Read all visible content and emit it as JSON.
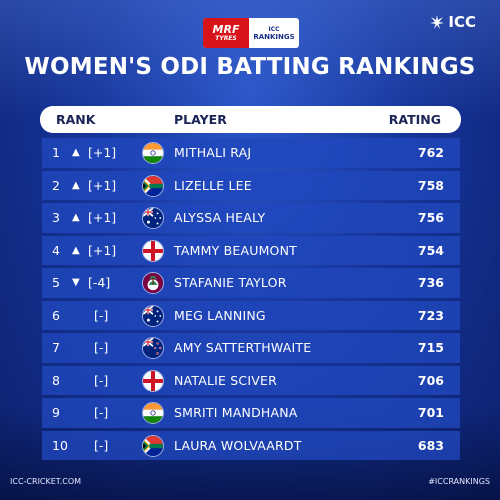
{
  "sponsor": {
    "brand": "MRF",
    "brand_sub": "TYRES",
    "tag_top": "ICC",
    "tag_bottom": "RANKINGS"
  },
  "logo": {
    "text": "ICC"
  },
  "title": "WOMEN'S ODI BATTING RANKINGS",
  "header": {
    "rank": "RANK",
    "player": "PLAYER",
    "rating": "RATING"
  },
  "rows": [
    {
      "pos": "1",
      "arrow": "▲",
      "move": "[+1]",
      "flag": "india",
      "name": "MITHALI RAJ",
      "rating": "762"
    },
    {
      "pos": "2",
      "arrow": "▲",
      "move": "[+1]",
      "flag": "south-africa",
      "name": "LIZELLE LEE",
      "rating": "758"
    },
    {
      "pos": "3",
      "arrow": "▲",
      "move": "[+1]",
      "flag": "australia",
      "name": "ALYSSA HEALY",
      "rating": "756"
    },
    {
      "pos": "4",
      "arrow": "▲",
      "move": "[+1]",
      "flag": "england",
      "name": "TAMMY BEAUMONT",
      "rating": "754"
    },
    {
      "pos": "5",
      "arrow": "▼",
      "move": "[-4]",
      "flag": "west-indies",
      "name": "STAFANIE TAYLOR",
      "rating": "736"
    },
    {
      "pos": "6",
      "arrow": "",
      "move": "[-]",
      "flag": "australia",
      "name": "MEG LANNING",
      "rating": "723"
    },
    {
      "pos": "7",
      "arrow": "",
      "move": "[-]",
      "flag": "new-zealand",
      "name": "AMY SATTERTHWAITE",
      "rating": "715"
    },
    {
      "pos": "8",
      "arrow": "",
      "move": "[-]",
      "flag": "england",
      "name": "NATALIE SCIVER",
      "rating": "706"
    },
    {
      "pos": "9",
      "arrow": "",
      "move": "[-]",
      "flag": "india",
      "name": "SMRITI MANDHANA",
      "rating": "701"
    },
    {
      "pos": "10",
      "arrow": "",
      "move": "[-]",
      "flag": "south-africa",
      "name": "LAURA WOLVAARDT",
      "rating": "683"
    }
  ],
  "footer": {
    "left": "ICC-CRICKET.COM",
    "right": "#ICCRANKINGS"
  }
}
